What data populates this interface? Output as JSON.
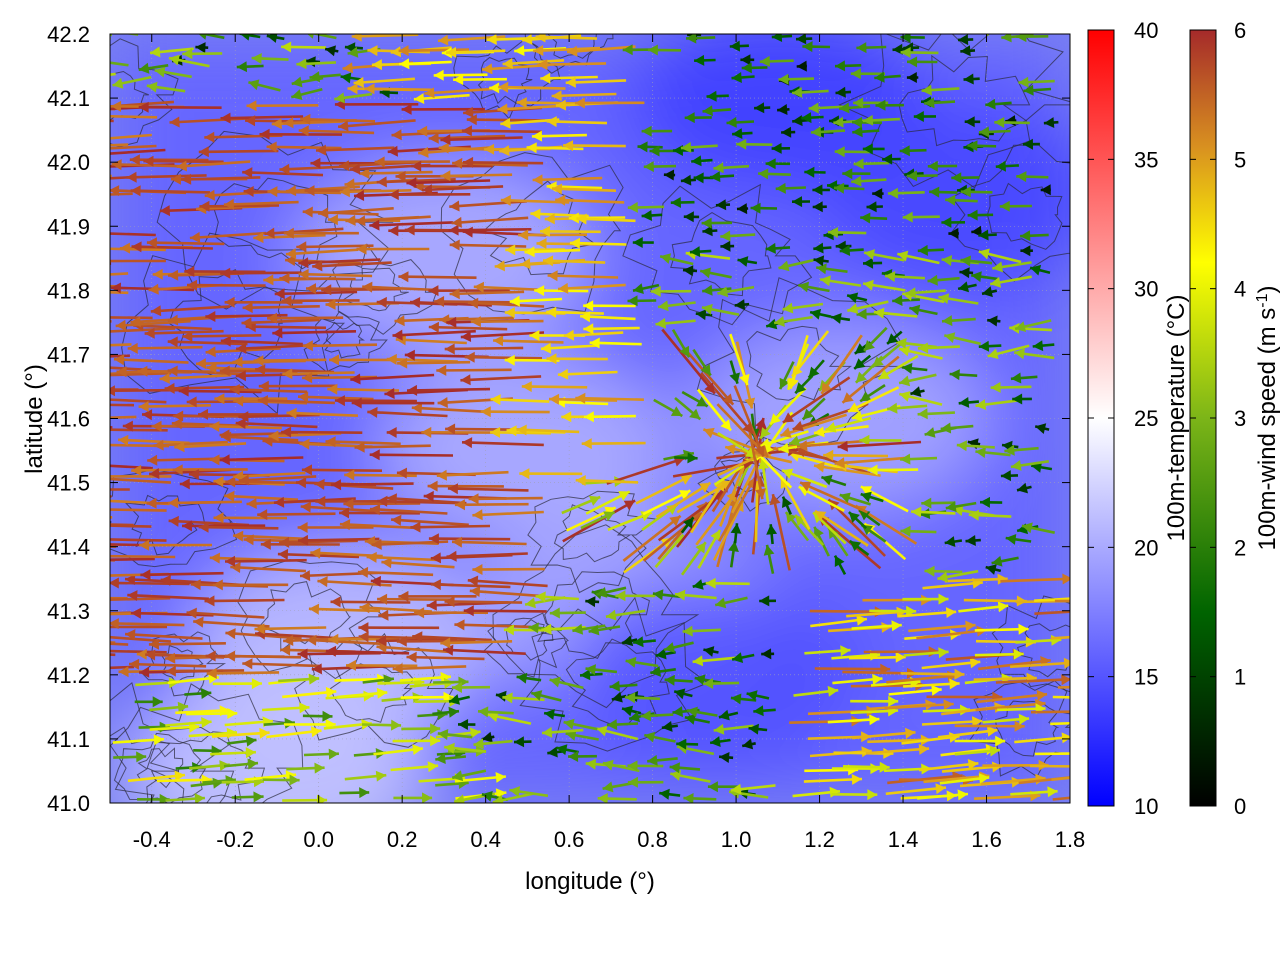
{
  "chart_data": {
    "type": "heatmap",
    "overlay": "wind vector field with contour lines",
    "title": "",
    "xlabel": "longitude (°)",
    "ylabel": "latitude (°)",
    "xlim": [
      -0.5,
      1.8
    ],
    "ylim": [
      41.0,
      42.2
    ],
    "x_ticks": [
      "-0.4",
      "-0.2",
      "0.0",
      "0.2",
      "0.4",
      "0.6",
      "0.8",
      "1.0",
      "1.2",
      "1.4",
      "1.6",
      "1.8"
    ],
    "y_ticks": [
      "41.0",
      "41.1",
      "41.2",
      "41.3",
      "41.4",
      "41.5",
      "41.6",
      "41.7",
      "41.8",
      "41.9",
      "42.0",
      "42.1",
      "42.2"
    ],
    "grid": true,
    "temperature_colorbar": {
      "label": "100m-temperature (°C)",
      "range": [
        10,
        40
      ],
      "ticks": [
        "10",
        "15",
        "20",
        "25",
        "30",
        "35",
        "40"
      ],
      "colors": [
        "#0000ff",
        "#ffffff",
        "#ff0000"
      ]
    },
    "windspeed_colorbar": {
      "label_main": "100m-wind speed (m s",
      "label_sup": "-1",
      "label_end": ")",
      "range": [
        0,
        6
      ],
      "ticks": [
        "0",
        "1",
        "2",
        "3",
        "4",
        "5",
        "6"
      ],
      "colors": [
        "#000000",
        "#006400",
        "#7cb518",
        "#ffff00",
        "#d89020",
        "#a52a2a"
      ]
    },
    "temperature_field": {
      "background_c": 16,
      "warm_patches": [
        {
          "lon": -0.1,
          "lat": 41.05,
          "temp_c": 22
        },
        {
          "lon": 0.05,
          "lat": 41.25,
          "temp_c": 21.5
        },
        {
          "lon": 0.3,
          "lat": 41.85,
          "temp_c": 20.5
        },
        {
          "lon": 0.5,
          "lat": 41.55,
          "temp_c": 20.5
        },
        {
          "lon": 1.25,
          "lat": 41.6,
          "temp_c": 20
        },
        {
          "lon": 0.75,
          "lat": 41.3,
          "temp_c": 20
        }
      ],
      "cool_patches": [
        {
          "lon": 1.1,
          "lat": 42.1,
          "temp_c": 13.5
        },
        {
          "lon": 1.55,
          "lat": 41.95,
          "temp_c": 14
        },
        {
          "lon": 0.95,
          "lat": 41.2,
          "temp_c": 14.5
        }
      ]
    },
    "wind_regions": [
      {
        "lon": [
          -0.5,
          0.55
        ],
        "lat": [
          41.2,
          42.1
        ],
        "direction": "westward",
        "speed_ms": [
          5.0,
          6.0
        ]
      },
      {
        "lon": [
          0.2,
          0.8
        ],
        "lat": [
          41.5,
          42.2
        ],
        "direction": "westward",
        "speed_ms": [
          3.5,
          5.0
        ]
      },
      {
        "lon": [
          0.8,
          1.8
        ],
        "lat": [
          41.85,
          42.2
        ],
        "direction": "westward",
        "speed_ms": [
          0.3,
          2.5
        ]
      },
      {
        "lon": [
          0.55,
          1.45
        ],
        "lat": [
          41.35,
          41.75
        ],
        "direction": "converging",
        "speed_ms": [
          1.0,
          6.0
        ]
      },
      {
        "lon": [
          1.1,
          1.8
        ],
        "lat": [
          41.0,
          41.35
        ],
        "direction": "eastward",
        "speed_ms": [
          3.0,
          5.5
        ]
      },
      {
        "lon": [
          -0.5,
          0.35
        ],
        "lat": [
          41.0,
          41.2
        ],
        "direction": "eastward",
        "speed_ms": [
          1.5,
          4.0
        ]
      }
    ]
  }
}
